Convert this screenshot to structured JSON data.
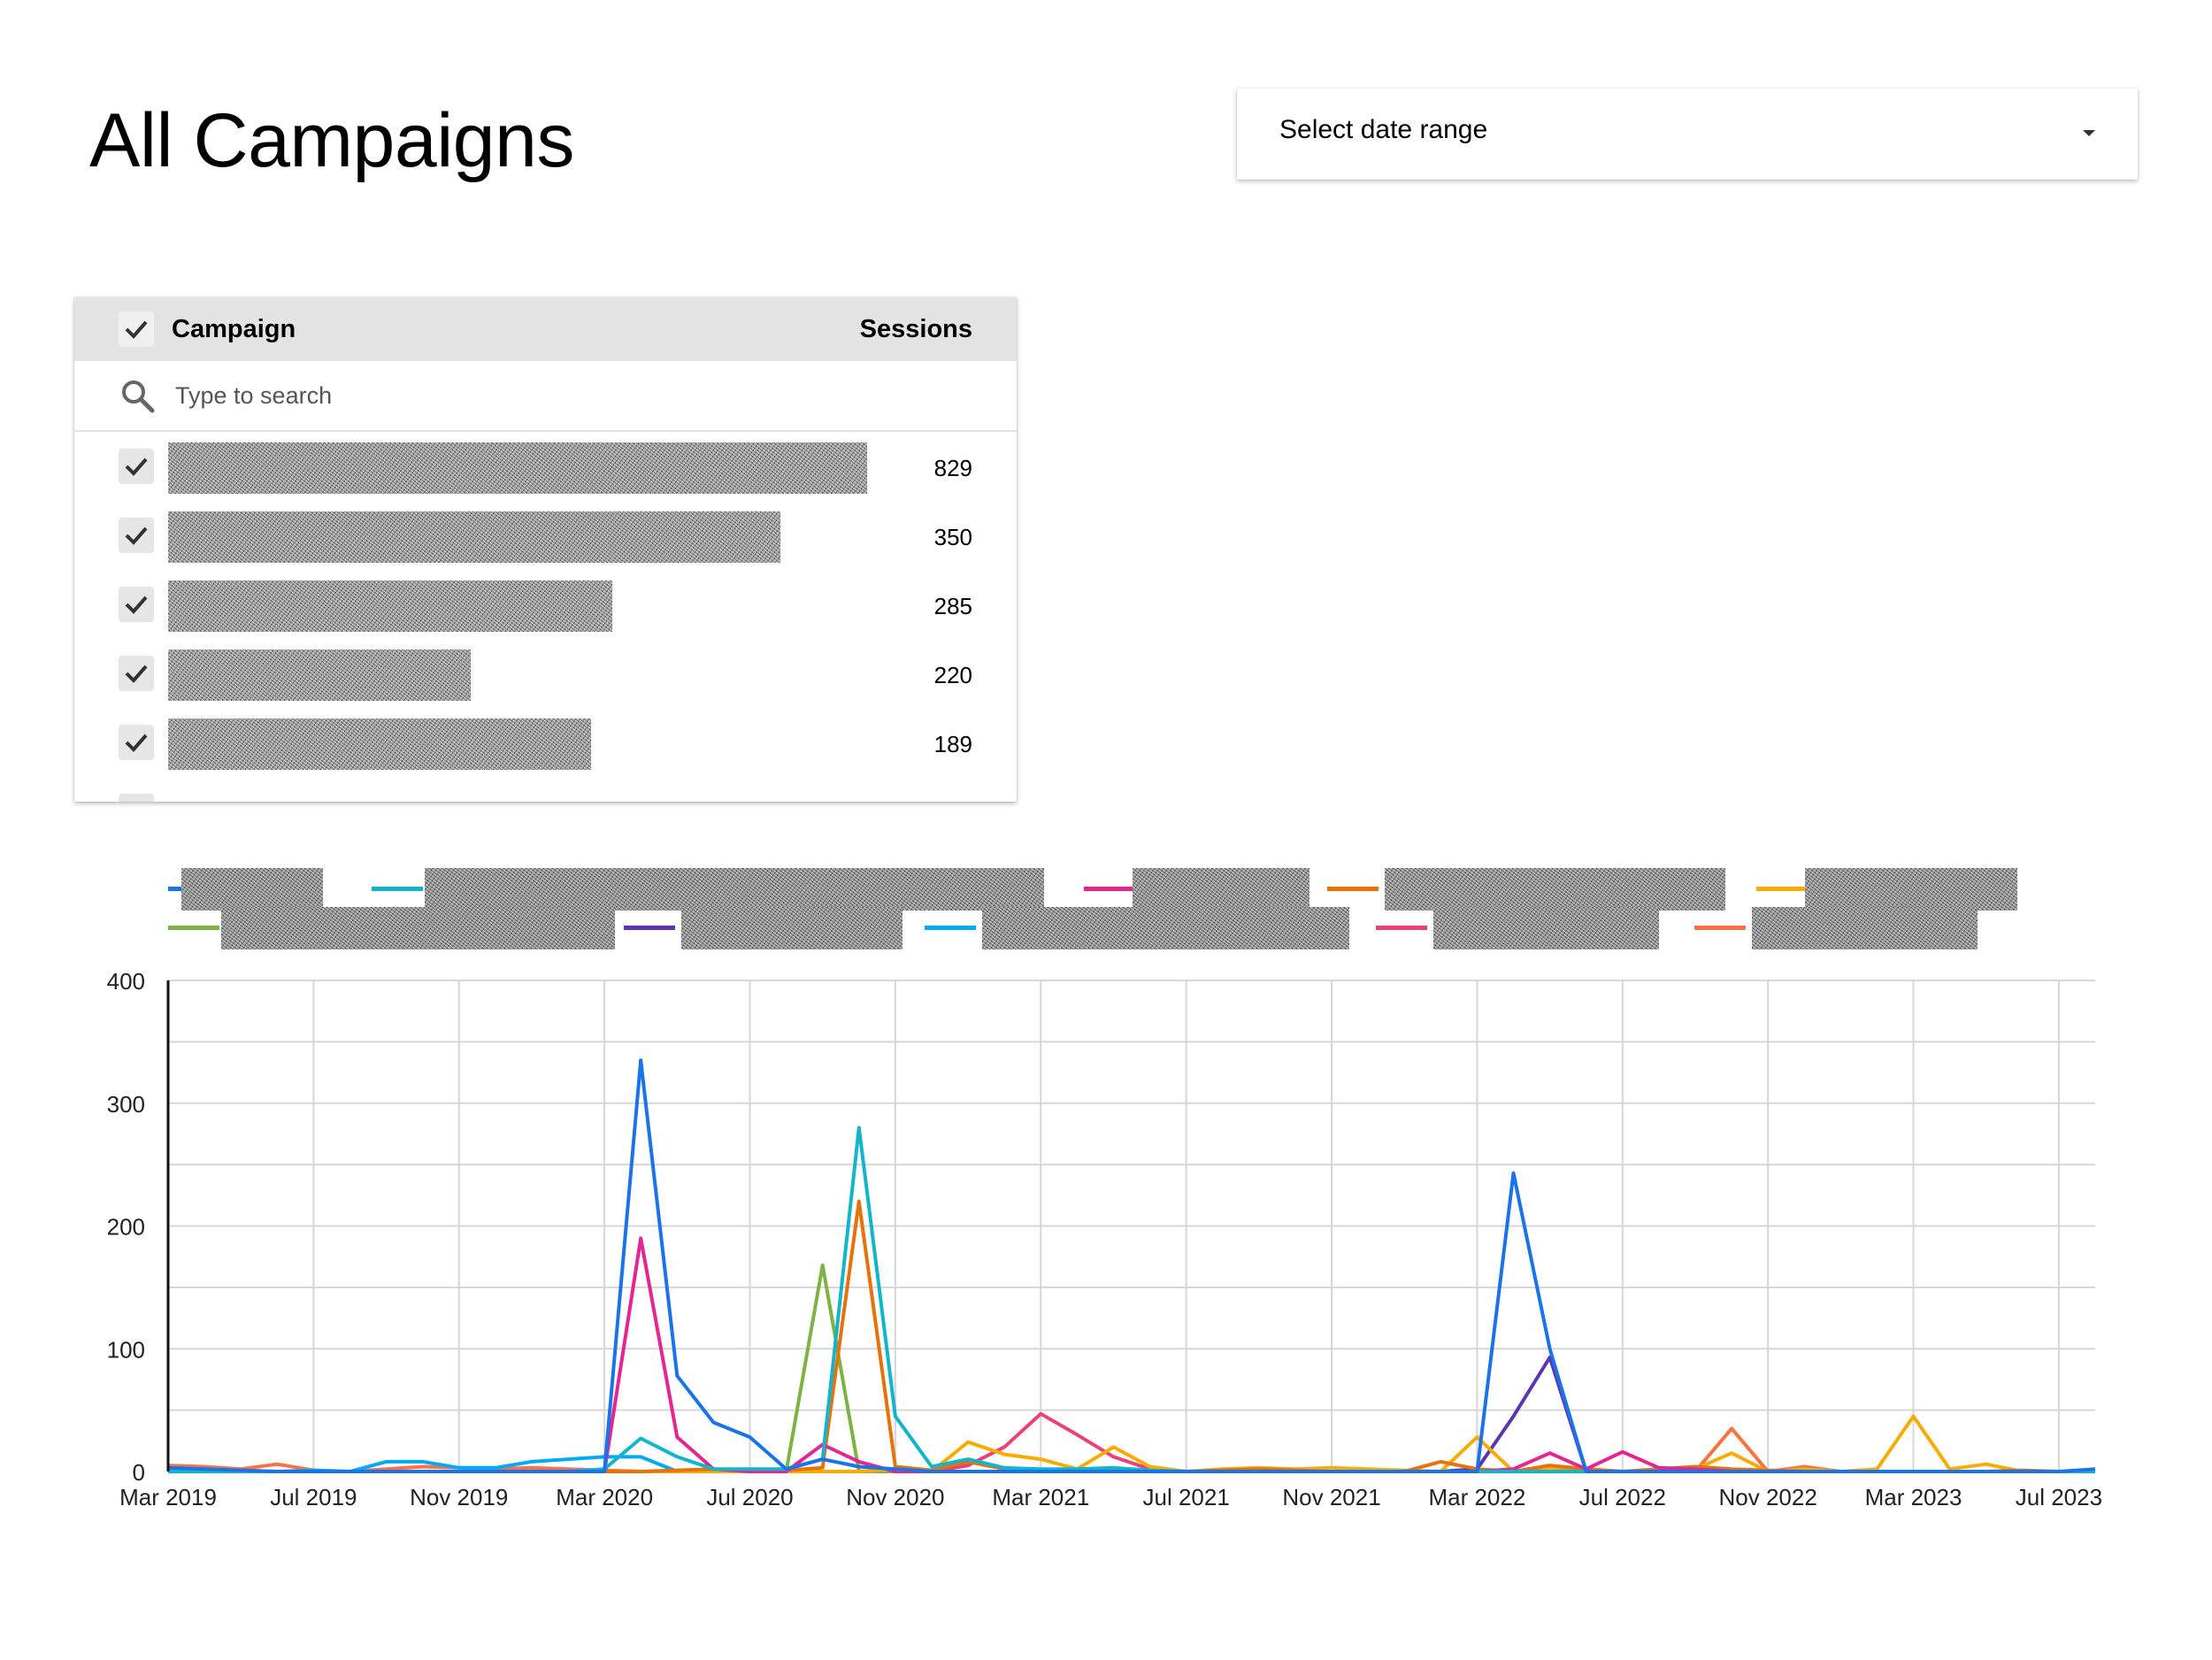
{
  "page": {
    "title": "All Campaigns"
  },
  "date_range": {
    "label": "Select date range"
  },
  "campaign_filter": {
    "header_campaign": "Campaign",
    "header_sessions": "Sessions",
    "search_placeholder": "Type to search",
    "rows": [
      {
        "sessions": "829",
        "checked": true
      },
      {
        "sessions": "350",
        "checked": true
      },
      {
        "sessions": "285",
        "checked": true
      },
      {
        "sessions": "220",
        "checked": true
      },
      {
        "sessions": "189",
        "checked": true
      }
    ]
  },
  "chart_data": {
    "type": "line",
    "x": [
      "Mar 2019",
      "Apr 2019",
      "May 2019",
      "Jun 2019",
      "Jul 2019",
      "Aug 2019",
      "Sep 2019",
      "Oct 2019",
      "Nov 2019",
      "Dec 2019",
      "Jan 2020",
      "Feb 2020",
      "Mar 2020",
      "Apr 2020",
      "May 2020",
      "Jun 2020",
      "Jul 2020",
      "Aug 2020",
      "Sep 2020",
      "Oct 2020",
      "Nov 2020",
      "Dec 2020",
      "Jan 2021",
      "Feb 2021",
      "Mar 2021",
      "Apr 2021",
      "May 2021",
      "Jun 2021",
      "Jul 2021",
      "Aug 2021",
      "Sep 2021",
      "Oct 2021",
      "Nov 2021",
      "Dec 2021",
      "Jan 2022",
      "Feb 2022",
      "Mar 2022",
      "Apr 2022",
      "May 2022",
      "Jun 2022",
      "Jul 2022",
      "Aug 2022",
      "Sep 2022",
      "Oct 2022",
      "Nov 2022",
      "Dec 2022",
      "Jan 2023",
      "Feb 2023",
      "Mar 2023",
      "Apr 2023",
      "May 2023",
      "Jun 2023",
      "Jul 2023",
      "Aug 2023"
    ],
    "x_tick_labels": [
      "Mar 2019",
      "Jul 2019",
      "Nov 2019",
      "Mar 2020",
      "Jul 2020",
      "Nov 2020",
      "Mar 2021",
      "Jul 2021",
      "Nov 2021",
      "Mar 2022",
      "Jul 2022",
      "Nov 2022",
      "Mar 2023",
      "Jul 2023"
    ],
    "y_ticks": [
      0,
      100,
      200,
      300,
      400
    ],
    "ylim": [
      0,
      400
    ],
    "grid": true,
    "legend_position": "top",
    "series": [
      {
        "color": "#1a73e8",
        "values": [
          3,
          2,
          1,
          0,
          0,
          0,
          0,
          0,
          0,
          0,
          0,
          0,
          0,
          335,
          78,
          40,
          28,
          2,
          10,
          4,
          2,
          0,
          0,
          0,
          0,
          0,
          0,
          0,
          0,
          0,
          0,
          0,
          0,
          0,
          0,
          0,
          0,
          243,
          100,
          0,
          0,
          0,
          0,
          0,
          0,
          0,
          0,
          0,
          0,
          0,
          0,
          0,
          0,
          2
        ]
      },
      {
        "color": "#12b5cb",
        "values": [
          0,
          0,
          0,
          0,
          0,
          0,
          0,
          0,
          0,
          0,
          0,
          0,
          2,
          27,
          12,
          2,
          2,
          2,
          10,
          280,
          45,
          4,
          10,
          3,
          2,
          2,
          3,
          1,
          0,
          0,
          0,
          0,
          0,
          0,
          0,
          0,
          0,
          0,
          0,
          0,
          0,
          0,
          0,
          0,
          0,
          0,
          0,
          0,
          0,
          0,
          0,
          0,
          0,
          0
        ]
      },
      {
        "color": "#e52592",
        "values": [
          0,
          0,
          0,
          0,
          0,
          0,
          0,
          0,
          0,
          0,
          0,
          0,
          0,
          190,
          28,
          2,
          0,
          0,
          22,
          8,
          0,
          0,
          0,
          0,
          0,
          0,
          0,
          0,
          0,
          0,
          0,
          0,
          0,
          0,
          0,
          0,
          0,
          2,
          15,
          2,
          16,
          3,
          2,
          0,
          0,
          0,
          0,
          0,
          0,
          0,
          0,
          0,
          0,
          0
        ]
      },
      {
        "color": "#e8710a",
        "values": [
          1,
          1,
          1,
          0,
          0,
          0,
          0,
          0,
          0,
          0,
          0,
          0,
          0,
          0,
          1,
          2,
          1,
          1,
          3,
          220,
          4,
          1,
          8,
          2,
          1,
          1,
          1,
          0,
          0,
          1,
          2,
          1,
          0,
          0,
          0,
          8,
          2,
          0,
          5,
          2,
          0,
          2,
          4,
          2,
          1,
          0,
          0,
          0,
          0,
          0,
          0,
          1,
          0,
          0
        ]
      },
      {
        "color": "#f9ab00",
        "values": [
          0,
          0,
          0,
          0,
          0,
          0,
          0,
          0,
          0,
          0,
          0,
          0,
          0,
          0,
          0,
          0,
          0,
          0,
          0,
          0,
          2,
          0,
          24,
          14,
          10,
          2,
          20,
          4,
          0,
          2,
          3,
          2,
          3,
          2,
          1,
          0,
          28,
          0,
          3,
          2,
          0,
          0,
          2,
          15,
          0,
          2,
          0,
          2,
          45,
          2,
          6,
          0,
          0,
          0
        ]
      },
      {
        "color": "#7cb342",
        "values": [
          0,
          0,
          0,
          0,
          0,
          0,
          0,
          0,
          0,
          0,
          0,
          0,
          0,
          0,
          0,
          0,
          0,
          0,
          168,
          0,
          0,
          0,
          0,
          0,
          0,
          0,
          0,
          0,
          0,
          0,
          0,
          0,
          0,
          0,
          0,
          0,
          0,
          0,
          0,
          0,
          0,
          0,
          0,
          0,
          0,
          0,
          0,
          0,
          0,
          0,
          0,
          0,
          0,
          0
        ]
      },
      {
        "color": "#5e35b1",
        "values": [
          0,
          0,
          0,
          0,
          0,
          0,
          0,
          0,
          0,
          0,
          0,
          0,
          0,
          0,
          0,
          0,
          0,
          0,
          0,
          0,
          0,
          0,
          0,
          0,
          0,
          0,
          0,
          0,
          0,
          0,
          0,
          0,
          0,
          0,
          0,
          0,
          2,
          45,
          93,
          0,
          0,
          0,
          0,
          0,
          0,
          0,
          0,
          0,
          0,
          0,
          0,
          0,
          0,
          0
        ]
      },
      {
        "color": "#03a9f4",
        "values": [
          0,
          0,
          0,
          0,
          1,
          0,
          8,
          8,
          3,
          3,
          8,
          10,
          12,
          12,
          0,
          0,
          0,
          0,
          0,
          0,
          0,
          0,
          0,
          0,
          0,
          0,
          0,
          0,
          0,
          0,
          0,
          0,
          0,
          0,
          0,
          0,
          0,
          0,
          0,
          0,
          0,
          0,
          0,
          0,
          0,
          0,
          0,
          0,
          0,
          0,
          0,
          0,
          0,
          0
        ]
      },
      {
        "color": "#ec407a",
        "values": [
          0,
          0,
          0,
          0,
          0,
          0,
          0,
          0,
          0,
          0,
          0,
          0,
          0,
          0,
          0,
          0,
          0,
          0,
          0,
          0,
          0,
          0,
          5,
          20,
          47,
          30,
          12,
          2,
          0,
          0,
          0,
          0,
          0,
          0,
          0,
          0,
          0,
          0,
          0,
          0,
          0,
          0,
          0,
          0,
          0,
          0,
          0,
          0,
          0,
          0,
          0,
          0,
          0,
          0
        ]
      },
      {
        "color": "#ff7043",
        "values": [
          5,
          4,
          2,
          6,
          1,
          0,
          2,
          4,
          3,
          2,
          3,
          2,
          1,
          0,
          0,
          0,
          0,
          0,
          0,
          0,
          0,
          0,
          0,
          0,
          0,
          0,
          0,
          0,
          0,
          0,
          0,
          0,
          0,
          0,
          0,
          0,
          0,
          0,
          0,
          0,
          0,
          0,
          0,
          35,
          0,
          4,
          0,
          0,
          0,
          0,
          0,
          0,
          0,
          0
        ]
      }
    ]
  },
  "colors": {
    "grid": "#d6d6d6",
    "panel_header": "#e3e3e3",
    "checkbox": "#e6e6e6"
  }
}
